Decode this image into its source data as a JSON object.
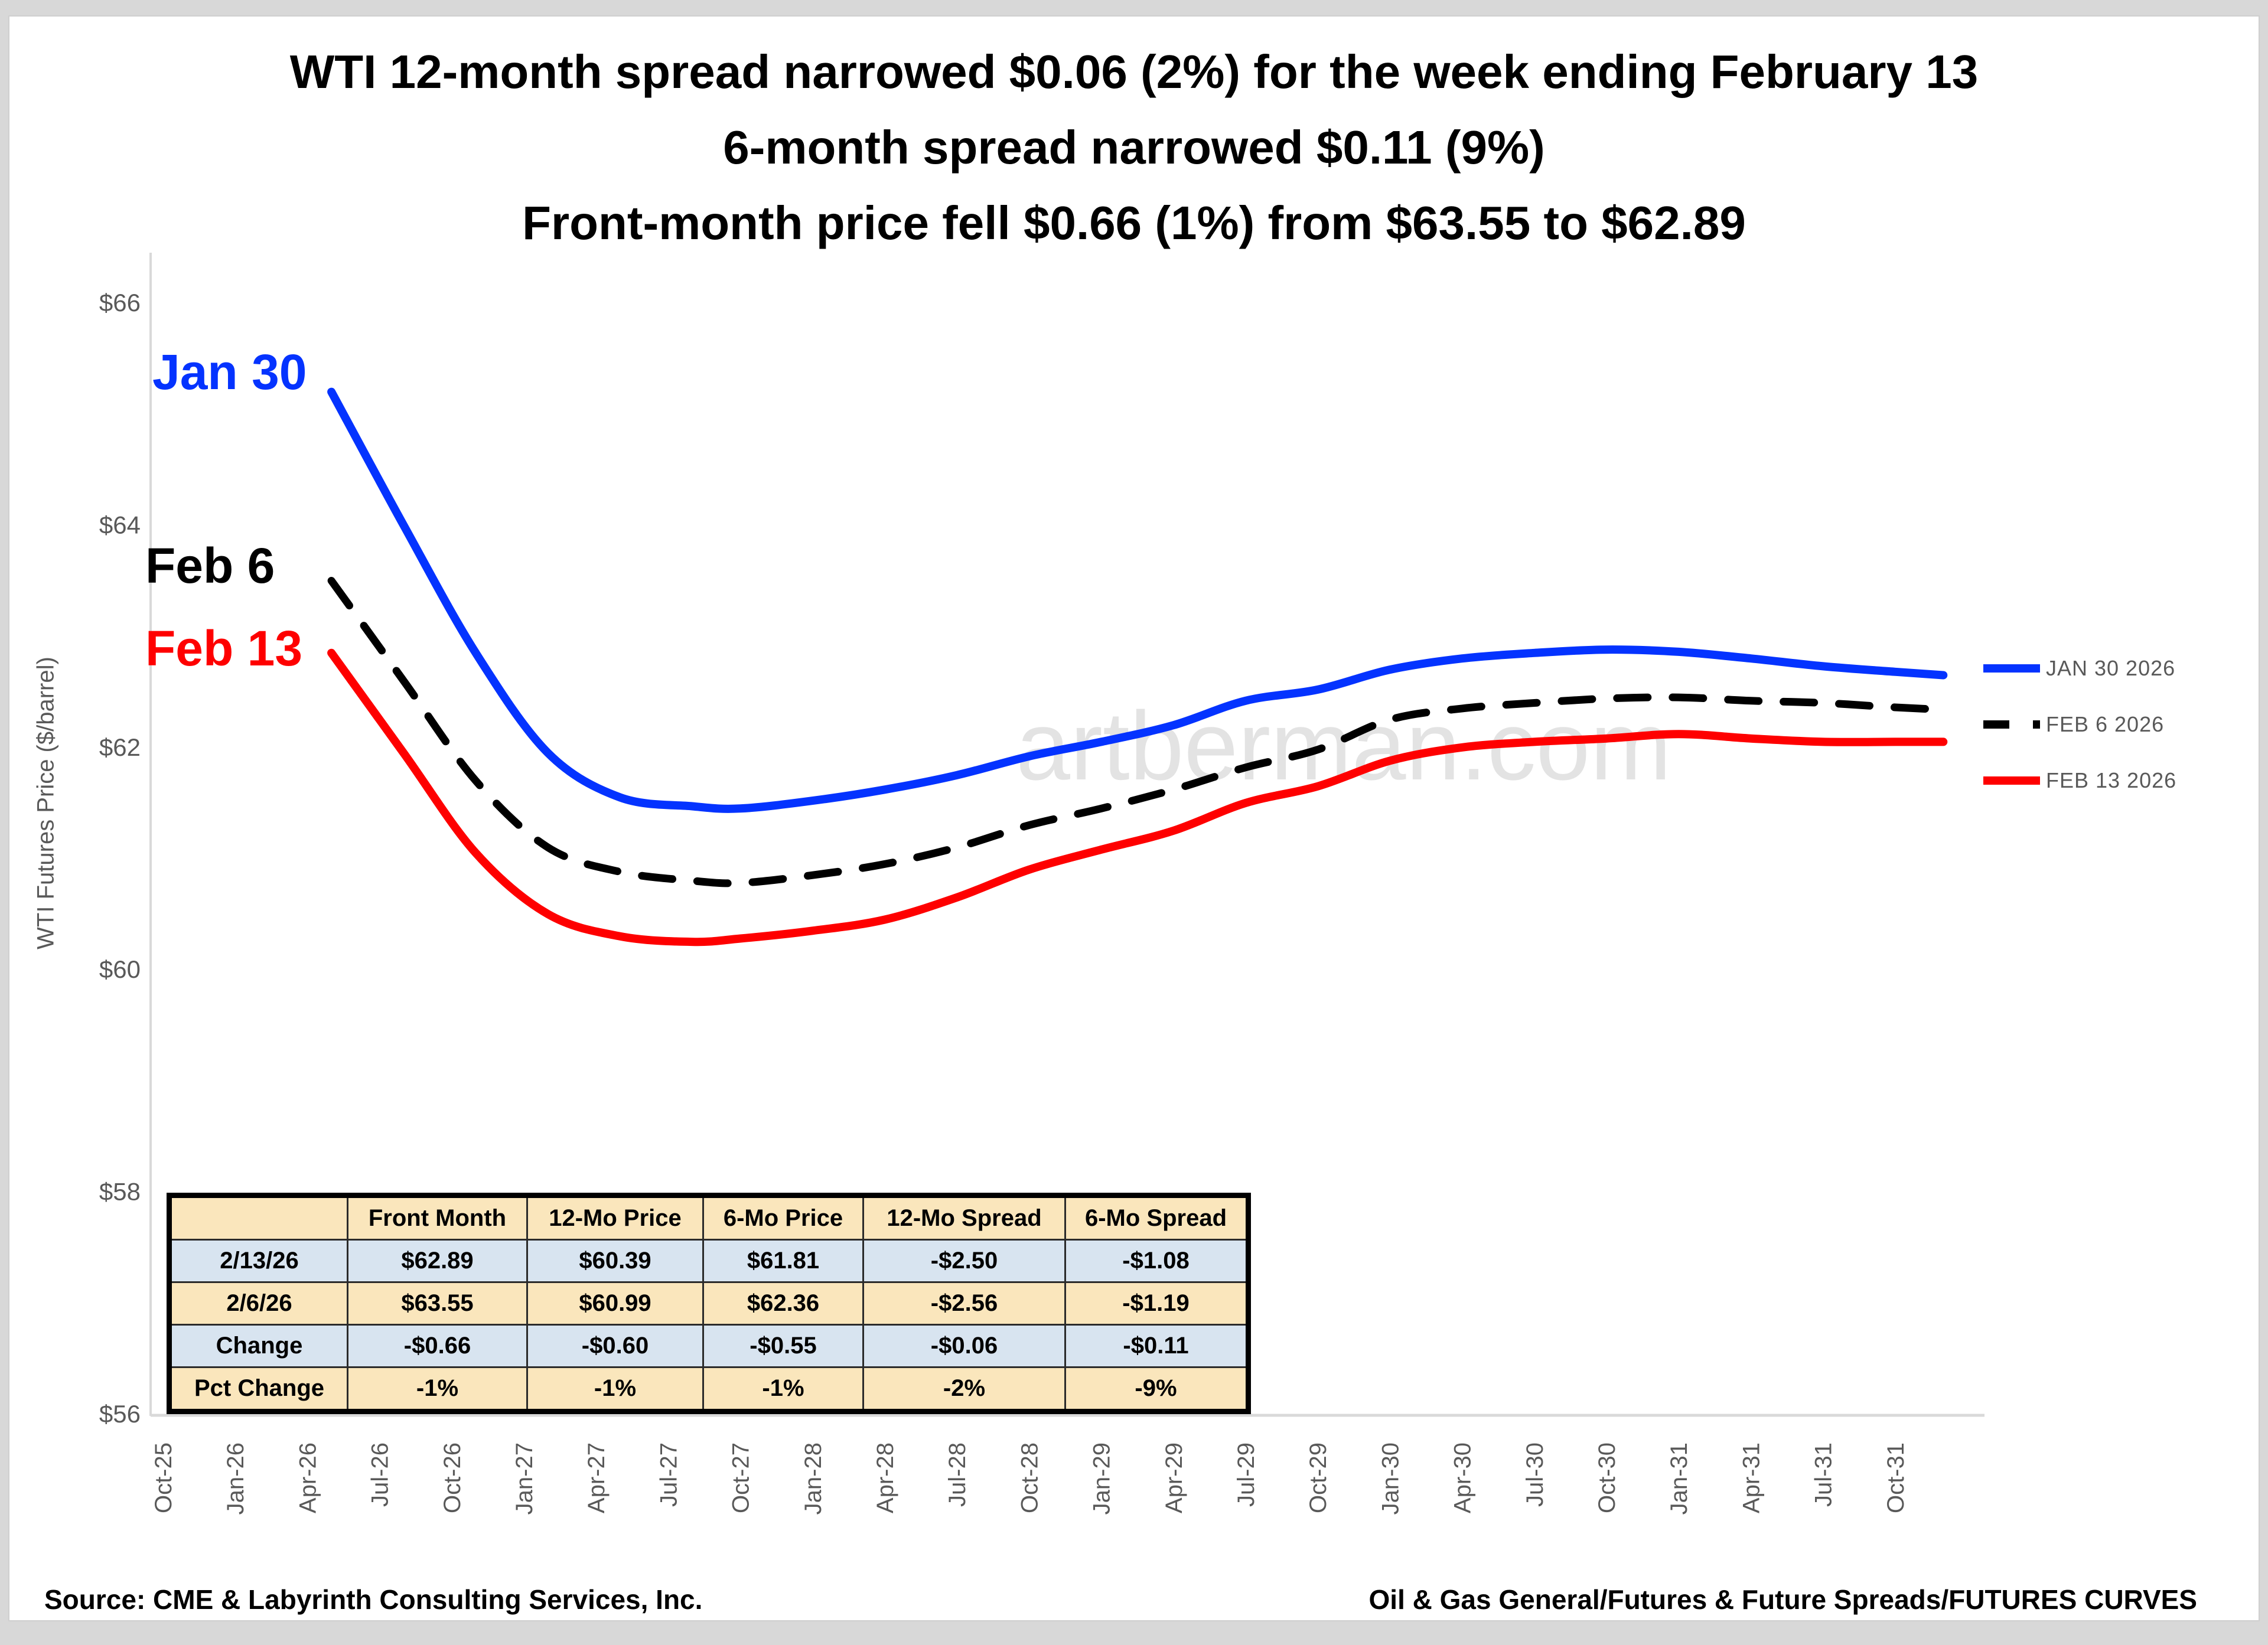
{
  "title": {
    "line1": "WTI 12-month spread narrowed $0.06 (2%) for the week ending February 13",
    "line2": "6-month spread narrowed $0.11 (9%)",
    "line3": "Front-month price fell $0.66 (1%) from $63.55 to $62.89"
  },
  "watermark": "artberman.com",
  "annotations": {
    "jan30": "Jan 30",
    "feb6": "Feb 6",
    "feb13": "Feb 13"
  },
  "footer": {
    "source": "Source: CME & Labyrinth Consulting Services, Inc.",
    "category": "Oil & Gas General/Futures & Future Spreads/FUTURES CURVES"
  },
  "colors": {
    "jan30_line": "#0433ff",
    "feb6_line": "#000000",
    "feb13_line": "#fe0000",
    "axis_text": "#595959",
    "watermark": "#e3e3e3",
    "table_cream": "#fae6bc",
    "table_blue": "#d8e4f0"
  },
  "table": {
    "headers": [
      "",
      "Front Month",
      "12-Mo Price",
      "6-Mo Price",
      "12-Mo Spread",
      "6-Mo Spread"
    ],
    "rows": [
      {
        "label": "2/13/26",
        "cells": [
          "$62.89",
          "$60.39",
          "$61.81",
          "-$2.50",
          "-$1.08"
        ],
        "style": "blue"
      },
      {
        "label": "2/6/26",
        "cells": [
          "$63.55",
          "$60.99",
          "$62.36",
          "-$2.56",
          "-$1.19"
        ],
        "style": "cream"
      },
      {
        "label": "Change",
        "cells": [
          "-$0.66",
          "-$0.60",
          "-$0.55",
          "-$0.06",
          "-$0.11"
        ],
        "style": "blue"
      },
      {
        "label": "Pct Change",
        "cells": [
          "-1%",
          "-1%",
          "-1%",
          "-2%",
          "-9%"
        ],
        "style": "cream"
      }
    ]
  },
  "chart_data": {
    "type": "line",
    "ylabel": "WTI Futures Price ($/barrel)",
    "ylim": [
      56,
      66
    ],
    "y_tick_labels": [
      "$66",
      "$64",
      "$62",
      "$60",
      "$58",
      "$56"
    ],
    "y_tick_values": [
      66,
      64,
      62,
      60,
      58,
      56
    ],
    "x_tick_labels": [
      "Oct-25",
      "Jan-26",
      "Apr-26",
      "Jul-26",
      "Oct-26",
      "Jan-27",
      "Apr-27",
      "Jul-27",
      "Oct-27",
      "Jan-28",
      "Apr-28",
      "Jul-28",
      "Oct-28",
      "Jan-29",
      "Apr-29",
      "Jul-29",
      "Oct-29",
      "Jan-30",
      "Apr-30",
      "Jul-30",
      "Oct-30",
      "Jan-31",
      "Apr-31",
      "Jul-31",
      "Oct-31"
    ],
    "x_months_per_tick": 3,
    "grid": false,
    "legend_position": "right",
    "series": [
      {
        "name": "JAN 30 2026",
        "color": "#0433ff",
        "style": "solid",
        "points_month_value": [
          [
            7,
            65.2
          ],
          [
            10,
            64.0
          ],
          [
            13,
            62.85
          ],
          [
            16,
            61.95
          ],
          [
            19,
            61.55
          ],
          [
            22,
            61.47
          ],
          [
            24,
            61.45
          ],
          [
            27,
            61.52
          ],
          [
            30,
            61.62
          ],
          [
            33,
            61.75
          ],
          [
            36,
            61.92
          ],
          [
            39,
            62.05
          ],
          [
            42,
            62.2
          ],
          [
            45,
            62.42
          ],
          [
            48,
            62.52
          ],
          [
            51,
            62.7
          ],
          [
            54,
            62.8
          ],
          [
            57,
            62.85
          ],
          [
            60,
            62.88
          ],
          [
            63,
            62.86
          ],
          [
            66,
            62.8
          ],
          [
            69,
            62.73
          ],
          [
            72,
            62.68
          ],
          [
            74,
            62.65
          ]
        ]
      },
      {
        "name": "FEB 6 2026",
        "color": "#000000",
        "style": "dashed",
        "points_month_value": [
          [
            7,
            63.5
          ],
          [
            10,
            62.6
          ],
          [
            13,
            61.7
          ],
          [
            16,
            61.1
          ],
          [
            19,
            60.88
          ],
          [
            22,
            60.8
          ],
          [
            24,
            60.78
          ],
          [
            27,
            60.85
          ],
          [
            30,
            60.95
          ],
          [
            33,
            61.1
          ],
          [
            36,
            61.3
          ],
          [
            39,
            61.45
          ],
          [
            42,
            61.62
          ],
          [
            45,
            61.82
          ],
          [
            48,
            61.98
          ],
          [
            51,
            62.25
          ],
          [
            54,
            62.35
          ],
          [
            57,
            62.4
          ],
          [
            60,
            62.44
          ],
          [
            63,
            62.45
          ],
          [
            66,
            62.42
          ],
          [
            69,
            62.4
          ],
          [
            72,
            62.36
          ],
          [
            74,
            62.34
          ]
        ]
      },
      {
        "name": "FEB 13 2026",
        "color": "#fe0000",
        "style": "solid",
        "points_month_value": [
          [
            7,
            62.85
          ],
          [
            10,
            61.95
          ],
          [
            13,
            61.05
          ],
          [
            16,
            60.5
          ],
          [
            19,
            60.3
          ],
          [
            22,
            60.25
          ],
          [
            24,
            60.28
          ],
          [
            27,
            60.35
          ],
          [
            30,
            60.45
          ],
          [
            33,
            60.65
          ],
          [
            36,
            60.9
          ],
          [
            39,
            61.08
          ],
          [
            42,
            61.25
          ],
          [
            45,
            61.5
          ],
          [
            48,
            61.65
          ],
          [
            51,
            61.88
          ],
          [
            54,
            62.0
          ],
          [
            57,
            62.05
          ],
          [
            60,
            62.08
          ],
          [
            63,
            62.12
          ],
          [
            66,
            62.08
          ],
          [
            69,
            62.05
          ],
          [
            72,
            62.05
          ],
          [
            74,
            62.05
          ]
        ]
      }
    ]
  }
}
